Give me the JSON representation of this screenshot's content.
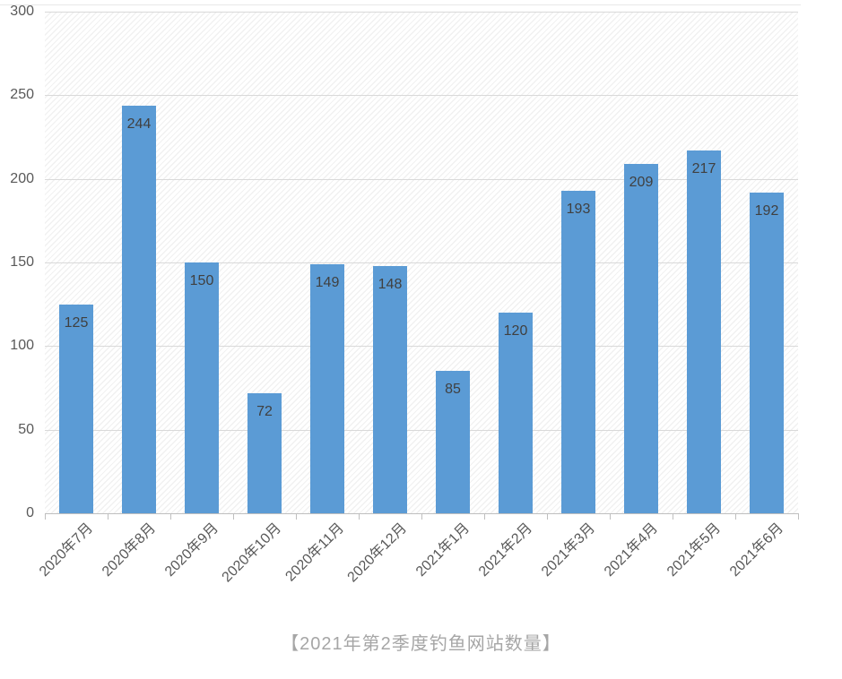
{
  "chart_data": {
    "type": "bar",
    "title": "【2021年第2季度钓鱼网站数量】",
    "categories": [
      "2020年7月",
      "2020年8月",
      "2020年9月",
      "2020年10月",
      "2020年11月",
      "2020年12月",
      "2021年1月",
      "2021年2月",
      "2021年3月",
      "2021年4月",
      "2021年5月",
      "2021年6月"
    ],
    "values": [
      125,
      244,
      150,
      72,
      149,
      148,
      85,
      120,
      193,
      209,
      217,
      192
    ],
    "xlabel": "",
    "ylabel": "",
    "ylim": [
      0,
      300
    ],
    "yticks": [
      0,
      50,
      100,
      150,
      200,
      250,
      300
    ],
    "grid": true,
    "legend_position": "none",
    "data_labels": "inside-end",
    "plot_background": "diagonal-hatch",
    "x_label_rotation_deg": 45
  },
  "colors": {
    "bar": "#5b9bd5",
    "bar_value_label": "#404040",
    "axis_tick_label": "#595959",
    "gridline": "#d9d9d9",
    "axis_line": "#bfbfbf",
    "caption": "#a6a6a6",
    "plot_fill": "#ffffff"
  }
}
